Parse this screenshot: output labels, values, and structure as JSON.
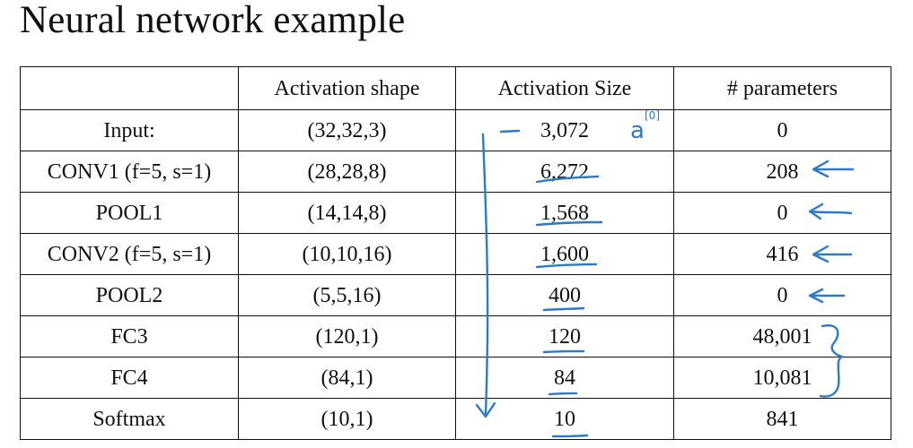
{
  "title": "Neural network example",
  "table": {
    "headers": [
      "",
      "Activation shape",
      "Activation Size",
      "# parameters"
    ],
    "rows": [
      {
        "layer": "Input:",
        "shape": "(32,32,3)",
        "size": "3,072",
        "params": "0"
      },
      {
        "layer": "CONV1 (f=5, s=1)",
        "shape": "(28,28,8)",
        "size": "6,272",
        "params": "208"
      },
      {
        "layer": "POOL1",
        "shape": "(14,14,8)",
        "size": "1,568",
        "params": "0"
      },
      {
        "layer": "CONV2  (f=5, s=1)",
        "shape": "(10,10,16)",
        "size": "1,600",
        "params": "416"
      },
      {
        "layer": "POOL2",
        "shape": "(5,5,16)",
        "size": "400",
        "params": "0"
      },
      {
        "layer": "FC3",
        "shape": "(120,1)",
        "size": "120",
        "params": "48,001"
      },
      {
        "layer": "FC4",
        "shape": "(84,1)",
        "size": "84",
        "params": "10,081"
      },
      {
        "layer": "Softmax",
        "shape": "(10,1)",
        "size": "10",
        "params": "841"
      }
    ]
  },
  "annotations": {
    "input_label": "a",
    "input_superscript": "[0]",
    "ink_color": "#2a7bc9"
  }
}
